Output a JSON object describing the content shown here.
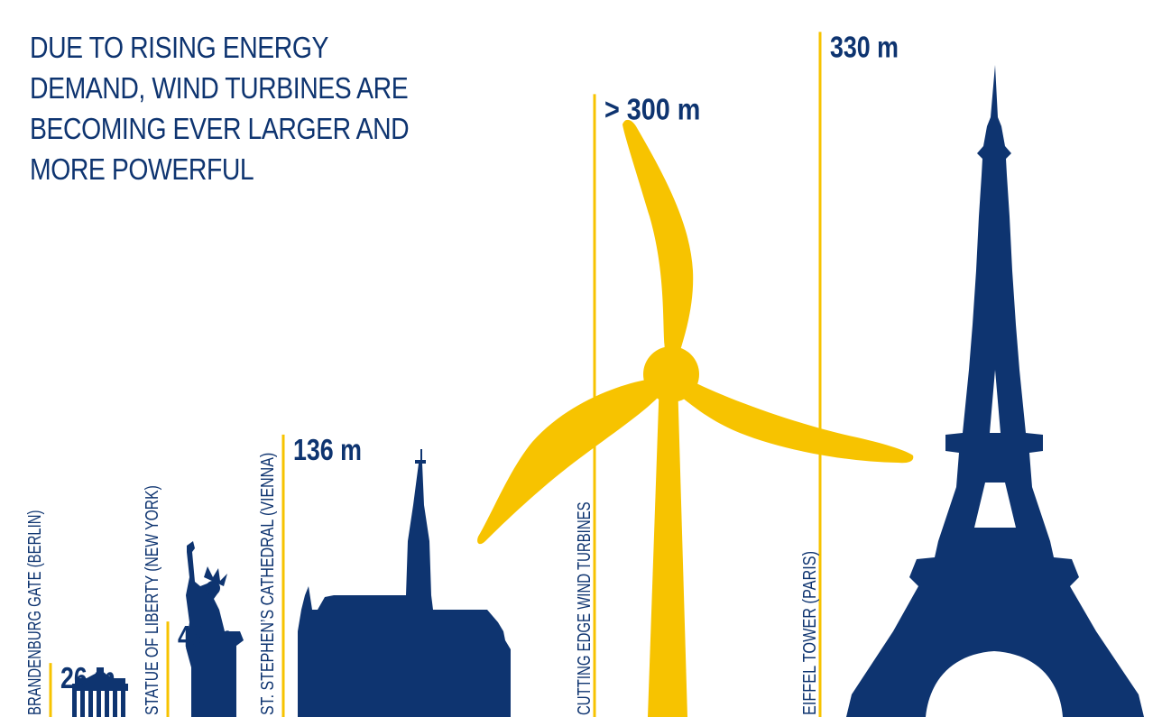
{
  "headline": "DUE TO RISING ENERGY\nDEMAND, WIND TURBINES ARE\nBECOMING EVER LARGER AND\nMORE POWERFUL",
  "colors": {
    "navy": "#0e3470",
    "yellow": "#f7c300"
  },
  "chart_data": {
    "type": "bar",
    "title": "DUE TO RISING ENERGY DEMAND, WIND TURBINES ARE BECOMING EVER LARGER AND MORE POWERFUL",
    "categories": [
      "BRANDENBURG GATE (BERLIN)",
      "STATUE OF LIBERTY (NEW YORK)",
      "ST. STEPHEN’S CATHEDRAL (VIENNA)",
      "CUTTING EDGE WIND TURBINES",
      "EIFFEL TOWER (PARIS)"
    ],
    "values": [
      26,
      46,
      136,
      300,
      330
    ],
    "value_labels": [
      "26 m",
      "46 m",
      "136 m",
      "> 300 m",
      "330 m"
    ],
    "icons": [
      "brandenburg-gate-icon",
      "statue-of-liberty-icon",
      "cathedral-icon",
      "wind-turbine-icon",
      "eiffel-tower-icon"
    ],
    "unit": "m"
  }
}
